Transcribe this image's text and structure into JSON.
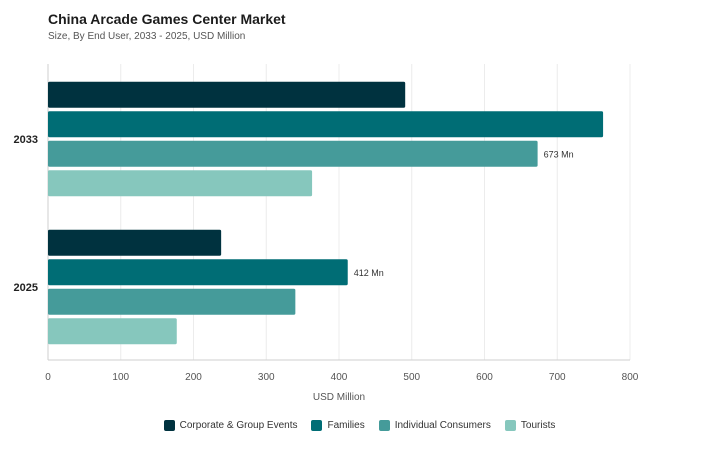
{
  "title": "China Arcade Games Center Market",
  "subtitle": "Size, By End User, 2033 - 2025, USD Million",
  "chart_data": {
    "type": "bar",
    "orientation": "horizontal",
    "categories": [
      "2033",
      "2025"
    ],
    "series": [
      {
        "name": "Corporate & Group Events",
        "color": "#00323f",
        "values": [
          491,
          238
        ]
      },
      {
        "name": "Families",
        "color": "#006d75",
        "values": [
          763,
          412
        ]
      },
      {
        "name": "Individual Consumers",
        "color": "#459b9a",
        "values": [
          673,
          340
        ]
      },
      {
        "name": "Tourists",
        "color": "#86c7bd",
        "values": [
          363,
          177
        ]
      }
    ],
    "data_labels": [
      {
        "category": "2033",
        "series": "Individual Consumers",
        "text": "673 Mn"
      },
      {
        "category": "2025",
        "series": "Families",
        "text": "412 Mn"
      }
    ],
    "xlabel": "USD Million",
    "xlim": [
      0,
      800
    ],
    "xticks": [
      0,
      100,
      200,
      300,
      400,
      500,
      600,
      700,
      800
    ],
    "grid": "vertical",
    "legend": "bottom-center"
  }
}
